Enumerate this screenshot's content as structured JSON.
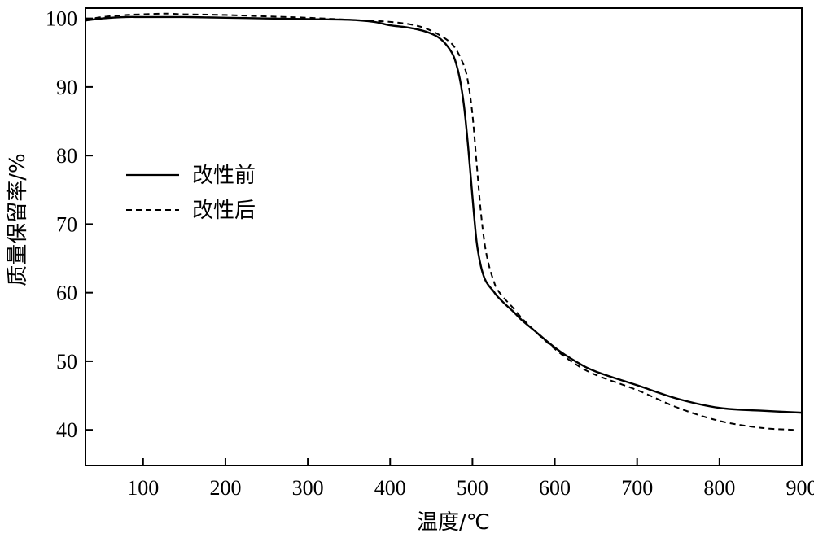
{
  "chart_data": {
    "type": "line",
    "xlabel": "温度/℃",
    "ylabel": "质量保留率/%",
    "xlim": [
      30,
      900
    ],
    "ylim": [
      34.8,
      101.5
    ],
    "xticks": [
      100,
      200,
      300,
      400,
      500,
      600,
      700,
      800,
      900
    ],
    "yticks": [
      40,
      50,
      60,
      70,
      80,
      90,
      100
    ],
    "grid": false,
    "legend_position": "left",
    "series": [
      {
        "name": "改性前",
        "style": "solid",
        "color": "#000000",
        "x": [
          30,
          50,
          80,
          100,
          150,
          200,
          250,
          300,
          350,
          380,
          400,
          420,
          440,
          455,
          465,
          475,
          480,
          485,
          490,
          495,
          500,
          505,
          510,
          515,
          520,
          525,
          530,
          540,
          550,
          560,
          575,
          600,
          625,
          650,
          700,
          750,
          800,
          850,
          900
        ],
        "y": [
          99.7,
          100.0,
          100.2,
          100.2,
          100.2,
          100.1,
          100.0,
          99.9,
          99.8,
          99.5,
          99.0,
          98.7,
          98.2,
          97.5,
          96.6,
          95.0,
          93.5,
          91.0,
          87.0,
          81.0,
          74.0,
          67.5,
          64.0,
          62.0,
          61.0,
          60.3,
          59.5,
          58.3,
          57.2,
          56.0,
          54.5,
          52.0,
          50.0,
          48.5,
          46.5,
          44.5,
          43.2,
          42.8,
          42.5
        ]
      },
      {
        "name": "改性后",
        "style": "dashed",
        "color": "#000000",
        "x": [
          30,
          50,
          80,
          100,
          130,
          150,
          200,
          250,
          300,
          350,
          400,
          430,
          450,
          470,
          480,
          490,
          495,
          500,
          505,
          510,
          515,
          520,
          525,
          530,
          540,
          550,
          560,
          575,
          600,
          625,
          650,
          700,
          750,
          800,
          850,
          890
        ],
        "y": [
          99.8,
          100.2,
          100.5,
          100.6,
          100.7,
          100.6,
          100.5,
          100.3,
          100.1,
          99.8,
          99.5,
          99.0,
          98.2,
          96.8,
          95.5,
          93.0,
          90.5,
          86.0,
          79.0,
          72.0,
          67.0,
          64.0,
          62.0,
          60.5,
          59.0,
          57.7,
          56.3,
          54.5,
          51.8,
          49.6,
          48.0,
          45.8,
          43.2,
          41.3,
          40.3,
          40.0
        ]
      }
    ]
  }
}
